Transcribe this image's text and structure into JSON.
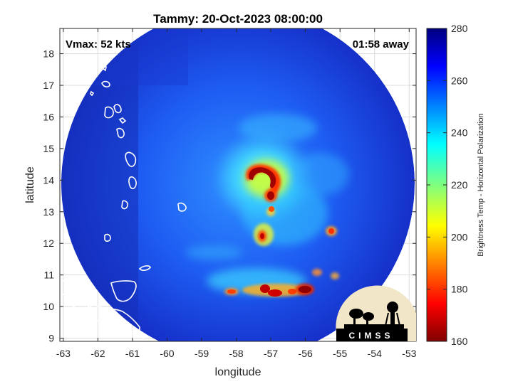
{
  "title": "Tammy: 20-Oct-2023 08:00:00",
  "vmax_text": "Vmax: 52 kts",
  "time_text": "01:58 away",
  "xlabel": "longitude",
  "ylabel": "latitude",
  "colorbar_label": "Brightness Temp - Horizontal Polarization",
  "logo_text": "CIMSS",
  "chart_data": {
    "type": "heatmap",
    "title": "Tammy: 20-Oct-2023 08:00:00",
    "xlabel": "longitude",
    "ylabel": "latitude",
    "xlim": [
      -63.1,
      -52.8
    ],
    "ylim": [
      8.9,
      18.8
    ],
    "xticks": [
      -63,
      -62,
      -61,
      -60,
      -59,
      -58,
      -57,
      -56,
      -55,
      -54,
      -53
    ],
    "yticks": [
      9,
      10,
      11,
      12,
      13,
      14,
      15,
      16,
      17,
      18
    ],
    "grid": true,
    "swath_center": {
      "lon": -58.0,
      "lat": 13.65
    },
    "swath_radius_deg": 5.0,
    "colorbar": {
      "min": 160,
      "max": 280,
      "ticks": [
        160,
        180,
        200,
        220,
        240,
        260,
        280
      ]
    },
    "features": [
      {
        "name": "eyewall",
        "lon": -57.5,
        "lat": 14.0,
        "tb": 170
      },
      {
        "name": "inner-band",
        "lon": -57.2,
        "lat": 13.5,
        "tb": 185
      },
      {
        "name": "southern-band-west",
        "lon": -57.2,
        "lat": 10.5,
        "tb": 180
      },
      {
        "name": "southern-band-east",
        "lon": -56.1,
        "lat": 10.5,
        "tb": 168
      },
      {
        "name": "rainband-core",
        "lon": -57.4,
        "lat": 12.2,
        "tb": 195
      }
    ]
  }
}
